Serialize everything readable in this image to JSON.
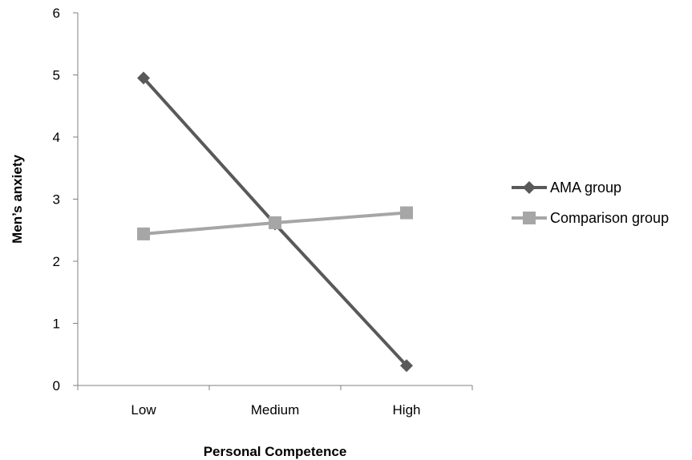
{
  "chart_data": {
    "type": "line",
    "categories": [
      "Low",
      "Medium",
      "High"
    ],
    "series": [
      {
        "name": "AMA group",
        "values": [
          4.95,
          2.6,
          0.32
        ],
        "color": "#595959",
        "marker": "diamond"
      },
      {
        "name": "Comparison group",
        "values": [
          2.44,
          2.62,
          2.78
        ],
        "color": "#a6a6a6",
        "marker": "square"
      }
    ],
    "xlabel": "Personal Competence",
    "ylabel": "Men’s anxiety",
    "ylim": [
      0,
      6
    ],
    "yticks": [
      "0",
      "1",
      "2",
      "3",
      "4",
      "5",
      "6"
    ],
    "grid": false,
    "legend_position": "right"
  }
}
